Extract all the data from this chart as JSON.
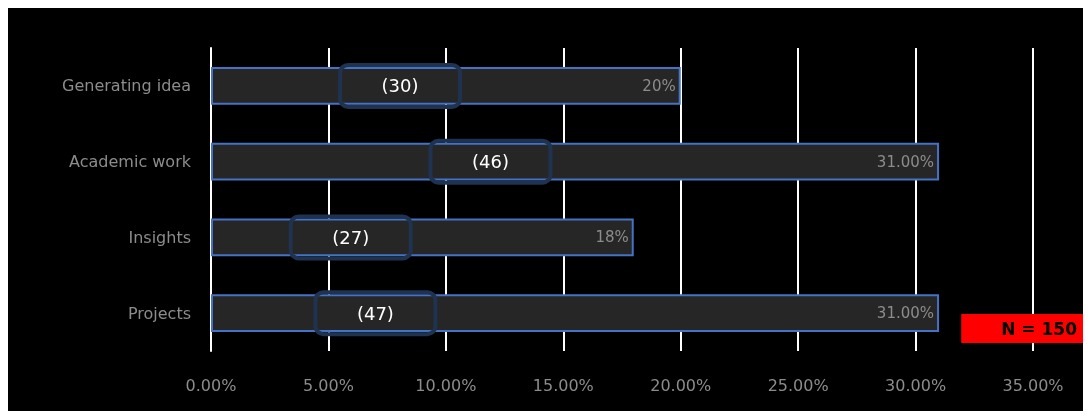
{
  "chart_data": {
    "type": "bar",
    "orientation": "horizontal",
    "categories": [
      "Generating idea",
      "Academic work",
      "Insights",
      "Projects"
    ],
    "values": [
      20,
      31,
      18,
      31
    ],
    "value_labels": [
      "20%",
      "31.00%",
      "18%",
      "31.00%"
    ],
    "color": "#262626",
    "xlim": [
      0,
      35
    ],
    "xticks": [
      {
        "value": 0,
        "label": "0.00%"
      },
      {
        "value": 5,
        "label": "5.00%"
      },
      {
        "value": 10,
        "label": "10.00%"
      },
      {
        "value": 15,
        "label": "15.00%"
      },
      {
        "value": 20,
        "label": "20.00%"
      },
      {
        "value": 25,
        "label": "25.00%"
      },
      {
        "value": 30,
        "label": "30.00%"
      },
      {
        "value": 35,
        "label": "35.00%"
      }
    ],
    "grid": "x",
    "annotations": [
      "(30)",
      "(46)",
      "(27)",
      "(47)",
      "N = 150"
    ]
  }
}
